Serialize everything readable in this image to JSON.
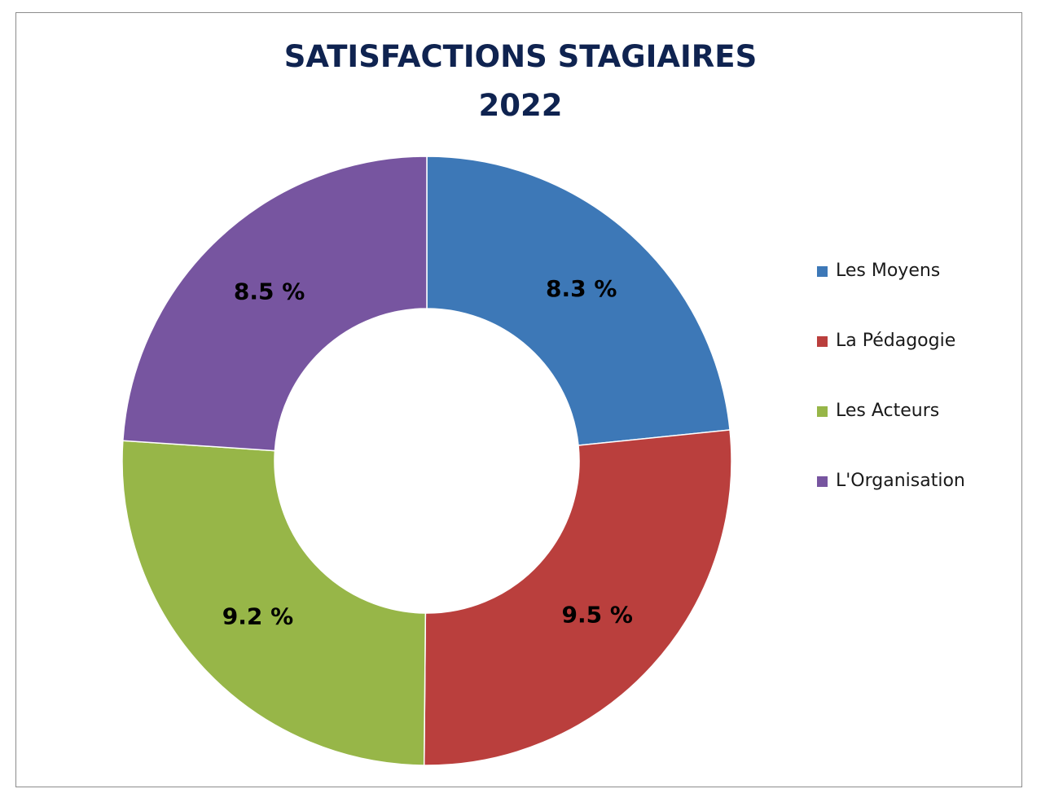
{
  "chart_data": {
    "type": "pie",
    "variant": "donut",
    "title": "SATISFACTIONS STAGIAIRES",
    "subtitle": "2022",
    "categories": [
      "Les Moyens",
      "La Pédagogie",
      "Les Acteurs",
      "L'Organisation"
    ],
    "values": [
      8.3,
      9.5,
      9.2,
      8.5
    ],
    "labels": [
      "8.3 %",
      "9.5 %",
      "9.2 %",
      "8.5 %"
    ],
    "colors": [
      "#3d78b7",
      "#ba3f3d",
      "#97b648",
      "#7755a0"
    ],
    "legend_position": "right",
    "start_angle": "12 o'clock",
    "direction": "clockwise"
  }
}
